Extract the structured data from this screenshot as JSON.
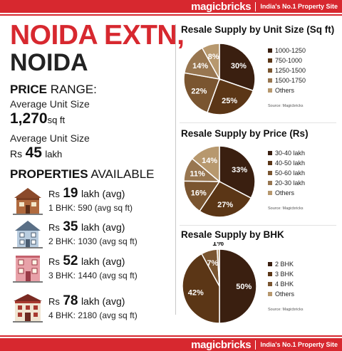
{
  "brand": {
    "logo": "magicbricks",
    "tagline": "India's No.1 Property Site"
  },
  "location": {
    "city": "NOIDA EXTN,",
    "state": "NOIDA"
  },
  "price_range": {
    "heading_bold": "PRICE",
    "heading_rest": " RANGE:",
    "label_size": "Average Unit Size",
    "size_value": "1,270",
    "size_unit": "sq ft",
    "label_price": "Average Unit Size",
    "price_prefix": "Rs",
    "price_value": "45",
    "price_unit": "lakh"
  },
  "properties": {
    "heading_bold": "PROPERTIES",
    "heading_rest": " AVAILABLE",
    "items": [
      {
        "prefix": "Rs",
        "value": "19",
        "unit": "lakh (avg)",
        "detail": "1 BHK: 590 (avg sq ft)",
        "icon": "brown-house-icon"
      },
      {
        "prefix": "Rs",
        "value": "35",
        "unit": "lakh (avg)",
        "detail": "2 BHK: 1030 (avg sq ft)",
        "icon": "blue-house-icon"
      },
      {
        "prefix": "Rs",
        "value": "52",
        "unit": "lakh (avg)",
        "detail": "3 BHK: 1440 (avg sq ft)",
        "icon": "pink-house-icon"
      },
      {
        "prefix": "Rs",
        "value": "78",
        "unit": "lakh (avg)",
        "detail": "4 BHK: 2180 (avg sq ft)",
        "icon": "red-house-icon"
      }
    ]
  },
  "chart_data": [
    {
      "type": "pie",
      "title": "Resale Supply by Unit Size (Sq ft)",
      "source": "Source: Magicbricks",
      "categories": [
        "1000-1250",
        "750-1000",
        "1250-1500",
        "1500-1750",
        "Others"
      ],
      "values": [
        30,
        25,
        22,
        14,
        8
      ],
      "labels": [
        "30%",
        "25%",
        "22%",
        "14%",
        "8%"
      ],
      "colors": [
        "#3a1f10",
        "#5b3616",
        "#7a5530",
        "#987650",
        "#b7986e"
      ]
    },
    {
      "type": "pie",
      "title": "Resale Supply by Price (Rs)",
      "source": "Source: Magicbricks",
      "categories": [
        "30-40 lakh",
        "40-50 lakh",
        "50-60 lakh",
        "20-30 lakh",
        "Others"
      ],
      "values": [
        33,
        27,
        16,
        11,
        14
      ],
      "labels": [
        "33%",
        "27%",
        "16%",
        "11%",
        "14%"
      ],
      "colors": [
        "#3a1f10",
        "#5b3616",
        "#7a5530",
        "#987650",
        "#b7986e"
      ]
    },
    {
      "type": "pie",
      "title": "Resale Supply by BHK",
      "source": "Source: Magicbricks",
      "categories": [
        "2 BHK",
        "3 BHK",
        "4 BHK",
        "Others"
      ],
      "values": [
        50,
        42,
        7,
        1
      ],
      "labels": [
        "50%",
        "42%",
        "7%",
        "1%"
      ],
      "colors": [
        "#3a1f10",
        "#5b3616",
        "#7a5530",
        "#b7986e"
      ]
    }
  ]
}
